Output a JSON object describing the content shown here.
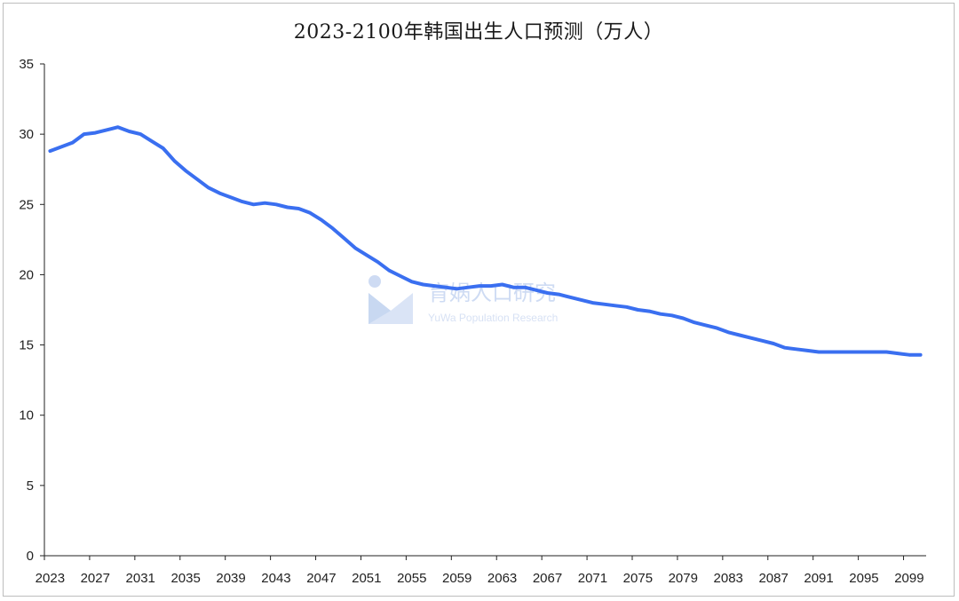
{
  "chart_data": {
    "type": "line",
    "title": "2023-2100年韩国出生人口预测（万人）",
    "xlabel": "",
    "ylabel": "",
    "ylim": [
      0,
      35
    ],
    "yticks": [
      0,
      5,
      10,
      15,
      20,
      25,
      30,
      35
    ],
    "xtick_labels": [
      "2023",
      "2027",
      "2031",
      "2035",
      "2039",
      "2043",
      "2047",
      "2051",
      "2055",
      "2059",
      "2063",
      "2067",
      "2071",
      "2075",
      "2079",
      "2083",
      "2087",
      "2091",
      "2095",
      "2099"
    ],
    "grid": false,
    "legend": "none",
    "line_color": "#3a6ff0",
    "series": [
      {
        "x": [
          2023,
          2024,
          2025,
          2026,
          2027,
          2028,
          2029,
          2030,
          2031,
          2032,
          2033,
          2034,
          2035,
          2036,
          2037,
          2038,
          2039,
          2040,
          2041,
          2042,
          2043,
          2044,
          2045,
          2046,
          2047,
          2048,
          2049,
          2050,
          2051,
          2052,
          2053,
          2054,
          2055,
          2056,
          2057,
          2058,
          2059,
          2060,
          2061,
          2062,
          2063,
          2064,
          2065,
          2066,
          2067,
          2068,
          2069,
          2070,
          2071,
          2072,
          2073,
          2074,
          2075,
          2076,
          2077,
          2078,
          2079,
          2080,
          2081,
          2082,
          2083,
          2084,
          2085,
          2086,
          2087,
          2088,
          2089,
          2090,
          2091,
          2092,
          2093,
          2094,
          2095,
          2096,
          2097,
          2098,
          2099,
          2100
        ],
        "values": [
          28.8,
          29.1,
          29.4,
          30.0,
          30.1,
          30.3,
          30.5,
          30.2,
          30.0,
          29.5,
          29.0,
          28.1,
          27.4,
          26.8,
          26.2,
          25.8,
          25.5,
          25.2,
          25.0,
          25.1,
          25.0,
          24.8,
          24.7,
          24.4,
          23.9,
          23.3,
          22.6,
          21.9,
          21.4,
          20.9,
          20.3,
          19.9,
          19.5,
          19.3,
          19.2,
          19.1,
          19.0,
          19.1,
          19.2,
          19.2,
          19.3,
          19.1,
          19.1,
          18.9,
          18.7,
          18.6,
          18.4,
          18.2,
          18.0,
          17.9,
          17.8,
          17.7,
          17.5,
          17.4,
          17.2,
          17.1,
          16.9,
          16.6,
          16.4,
          16.2,
          15.9,
          15.7,
          15.5,
          15.3,
          15.1,
          14.8,
          14.7,
          14.6,
          14.5,
          14.5,
          14.5,
          14.5,
          14.5,
          14.5,
          14.5,
          14.4,
          14.3,
          14.3
        ]
      }
    ]
  },
  "watermark": {
    "cn": "育娲人口研究",
    "en": "YuWa Population Research"
  }
}
